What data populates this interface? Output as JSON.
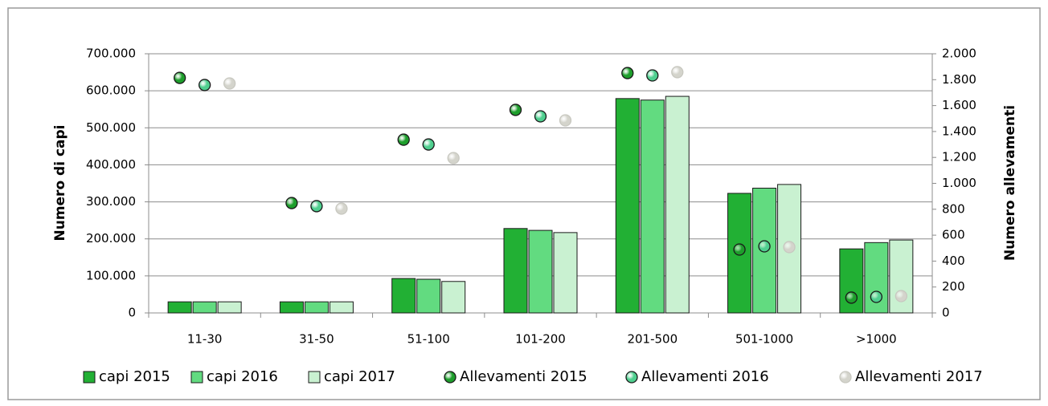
{
  "chart_data": {
    "type": "bar",
    "categories": [
      "11-30",
      "31-50",
      "51-100",
      "101-200",
      "201-500",
      "501-1000",
      ">1000"
    ],
    "y_label": "Numero di capi",
    "y2_label": "Numero allevamenti",
    "ylim": [
      0,
      700000
    ],
    "yticks": [
      0,
      {
        "value": 100000,
        "label": "100.000"
      },
      {
        "value": 200000,
        "label": "200.000"
      },
      {
        "value": 300000,
        "label": "300.000"
      },
      {
        "value": 400000,
        "label": "400.000"
      },
      {
        "value": 500000,
        "label": "500.000"
      },
      {
        "value": 600000,
        "label": "600.000"
      },
      {
        "value": 700000,
        "label": "700.000"
      }
    ],
    "y2lim": [
      0,
      2000
    ],
    "y2ticks": [
      0,
      200,
      400,
      600,
      800,
      {
        "value": 1000,
        "label": "1.000"
      },
      {
        "value": 1200,
        "label": "1.200"
      },
      {
        "value": 1400,
        "label": "1.400"
      },
      {
        "value": 1600,
        "label": "1.600"
      },
      {
        "value": 1800,
        "label": "1.800"
      },
      {
        "value": 2000,
        "label": "2.000"
      }
    ],
    "grid": true,
    "legend": "bottom",
    "series": [
      {
        "name": "capi 2015",
        "type": "bar",
        "color": "#22b034",
        "values": [
          30000,
          30000,
          93000,
          228000,
          579000,
          323000,
          173000
        ]
      },
      {
        "name": "capi 2016",
        "type": "bar",
        "color": "#62db80",
        "values": [
          30000,
          30000,
          91000,
          223000,
          575000,
          337000,
          190000
        ]
      },
      {
        "name": "capi 2017",
        "type": "bar",
        "color": "#c9f1d1",
        "values": [
          30000,
          30000,
          85000,
          217000,
          585000,
          347000,
          197000
        ]
      },
      {
        "name": "Allevamenti 2015",
        "type": "scatter",
        "axis": "y2",
        "color": "#1e9e2c",
        "values": [
          1814,
          848,
          1337,
          1567,
          1851,
          489,
          118
        ]
      },
      {
        "name": "Allevamenti 2016",
        "type": "scatter",
        "axis": "y2",
        "color": "#4fcf8f",
        "values": [
          1759,
          824,
          1300,
          1517,
          1833,
          514,
          124
        ]
      },
      {
        "name": "Allevamenti 2017",
        "type": "scatter",
        "axis": "y2",
        "color": "#d4d4cc",
        "values": [
          1771,
          805,
          1195,
          1486,
          1858,
          508,
          130
        ]
      }
    ]
  }
}
